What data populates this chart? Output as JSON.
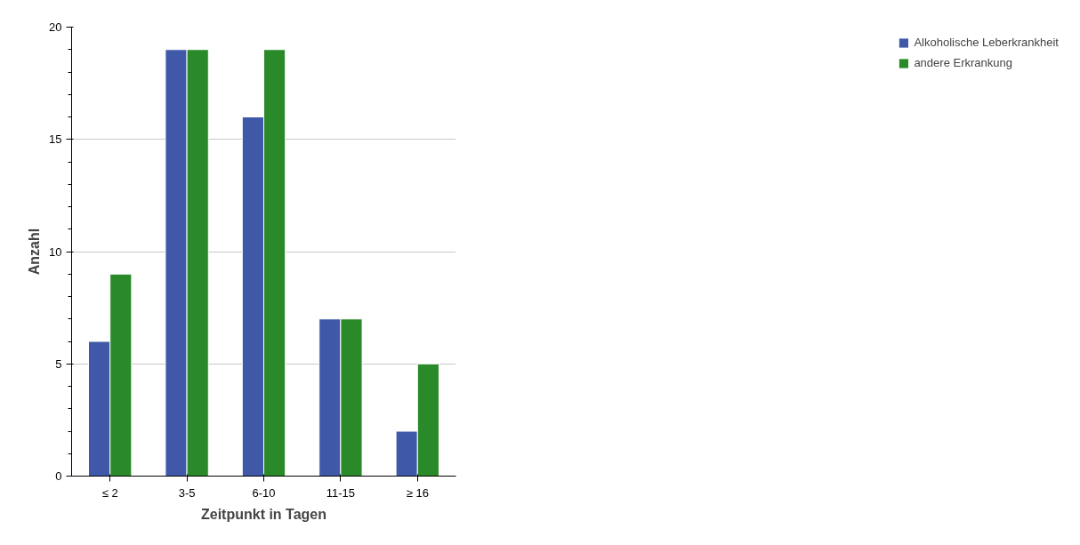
{
  "chart_data": {
    "type": "bar",
    "xlabel": "Zeitpunkt in Tagen",
    "ylabel": "Anzahl",
    "categories": [
      "≤ 2",
      "3-5",
      "6-10",
      "11-15",
      "≥ 16"
    ],
    "series": [
      {
        "name": "Alkoholische Leberkrankheit",
        "color": "#3f59a8",
        "values": [
          6,
          19,
          16,
          7,
          2
        ]
      },
      {
        "name": "andere Erkrankung",
        "color": "#2a8a2a",
        "values": [
          9,
          19,
          19,
          7,
          5
        ]
      }
    ],
    "ylim": [
      0,
      20
    ],
    "yticks": [
      0,
      5,
      10,
      15,
      20
    ],
    "grid": "y",
    "legend": "right"
  }
}
